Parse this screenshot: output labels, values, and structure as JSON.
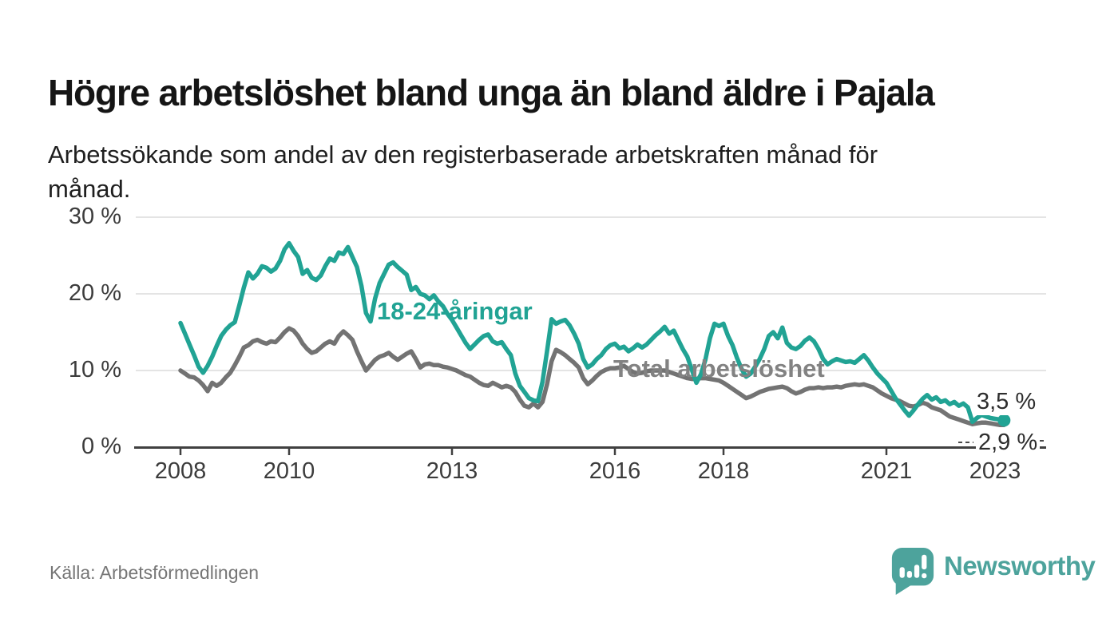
{
  "title": "Högre arbetslöshet bland unga än bland äldre i Pajala",
  "subtitle": "Arbetssökande som andel av den registerbaserade arbetskraften månad för månad.",
  "source": "Källa: Arbetsförmedlingen",
  "branding": {
    "name": "Newsworthy",
    "icon": "speech-bubble-with-bar-chart",
    "color": "#4da39c"
  },
  "chart_data": {
    "type": "line",
    "title": "Högre arbetslöshet bland unga än bland äldre i Pajala",
    "xlabel": "",
    "ylabel": "",
    "unit": "%",
    "x_start": "2008-01",
    "frequency": "monthly",
    "x_tick_years": [
      2008,
      2010,
      2013,
      2016,
      2018,
      2021,
      2023
    ],
    "x_tick_labels": [
      "2008",
      "2010",
      "2013",
      "2016",
      "2018",
      "2021",
      "2023"
    ],
    "y_ticks": [
      0,
      10,
      20,
      30
    ],
    "y_tick_labels": [
      "0 %",
      "10 %",
      "20 %",
      "30 %"
    ],
    "ylim": [
      0,
      31
    ],
    "grid": "horizontal",
    "colors": {
      "grid": "#dcdcdc",
      "axis": "#404040",
      "tick_text": "#3c3c3c"
    },
    "series": [
      {
        "name": "18-24-åringar",
        "color": "#21a394",
        "end_label": "3,5 %",
        "end_value": 3.5,
        "end_marker": "dot",
        "values": [
          16.2,
          14.8,
          13.4,
          12.0,
          10.5,
          9.7,
          10.6,
          11.8,
          13.2,
          14.5,
          15.3,
          15.9,
          16.3,
          18.5,
          20.8,
          22.8,
          22.0,
          22.6,
          23.6,
          23.4,
          22.9,
          23.3,
          24.3,
          25.8,
          26.6,
          25.6,
          24.8,
          22.6,
          23.1,
          22.1,
          21.8,
          22.4,
          23.6,
          24.6,
          24.3,
          25.4,
          25.2,
          26.1,
          24.8,
          23.5,
          21.0,
          17.5,
          16.4,
          19.4,
          21.4,
          22.6,
          23.8,
          24.1,
          23.5,
          23.0,
          22.5,
          20.5,
          20.9,
          20.0,
          19.8,
          19.3,
          19.8,
          19.0,
          18.4,
          17.4,
          16.6,
          15.6,
          14.6,
          13.6,
          12.8,
          13.4,
          14.0,
          14.5,
          14.7,
          13.8,
          13.5,
          13.7,
          12.8,
          12.0,
          9.6,
          8.0,
          7.2,
          6.4,
          6.1,
          6.0,
          8.5,
          12.5,
          16.7,
          16.1,
          16.4,
          16.6,
          15.9,
          14.8,
          13.5,
          11.5,
          10.4,
          10.8,
          11.5,
          12.0,
          12.8,
          13.3,
          13.5,
          12.9,
          13.1,
          12.5,
          12.9,
          13.4,
          13.0,
          13.4,
          14.0,
          14.6,
          15.1,
          15.7,
          14.8,
          15.2,
          14.0,
          12.8,
          11.8,
          10.1,
          8.4,
          9.5,
          11.4,
          14.2,
          16.1,
          15.8,
          16.1,
          14.5,
          13.3,
          11.6,
          10.2,
          9.2,
          9.6,
          10.5,
          11.5,
          12.8,
          14.5,
          15.0,
          14.2,
          15.6,
          13.6,
          13.0,
          12.8,
          13.2,
          13.9,
          14.3,
          13.8,
          12.8,
          11.5,
          10.8,
          11.2,
          11.5,
          11.3,
          11.1,
          11.2,
          11.0,
          11.5,
          12.0,
          11.3,
          10.4,
          9.6,
          9.0,
          8.4,
          7.4,
          6.4,
          5.6,
          4.8,
          4.1,
          4.8,
          5.6,
          6.3,
          6.8,
          6.2,
          6.5,
          5.9,
          6.1,
          5.6,
          5.9,
          5.4,
          5.7,
          5.2,
          3.3,
          3.8,
          4.2,
          4.0,
          3.8,
          3.7,
          3.6,
          3.5
        ]
      },
      {
        "name": "Total arbetslöshet",
        "color": "#737373",
        "end_label": "2,9 %",
        "end_value": 2.9,
        "end_marker": "dashed-leader",
        "values": [
          10.0,
          9.6,
          9.2,
          9.1,
          8.7,
          8.1,
          7.3,
          8.4,
          8.0,
          8.4,
          9.1,
          9.7,
          10.7,
          11.8,
          13.0,
          13.3,
          13.8,
          14.0,
          13.7,
          13.5,
          13.8,
          13.7,
          14.3,
          15.0,
          15.5,
          15.2,
          14.5,
          13.5,
          12.8,
          12.3,
          12.5,
          13.0,
          13.5,
          13.8,
          13.5,
          14.5,
          15.1,
          14.6,
          14.0,
          12.5,
          11.2,
          10.0,
          10.7,
          11.4,
          11.8,
          12.0,
          12.3,
          11.8,
          11.4,
          11.8,
          12.2,
          12.5,
          11.5,
          10.4,
          10.8,
          10.9,
          10.7,
          10.7,
          10.5,
          10.4,
          10.2,
          10.0,
          9.7,
          9.4,
          9.2,
          8.8,
          8.4,
          8.1,
          8.0,
          8.4,
          8.1,
          7.8,
          8.0,
          7.8,
          7.2,
          6.2,
          5.4,
          5.2,
          5.7,
          5.2,
          5.9,
          8.2,
          11.2,
          12.7,
          12.4,
          12.0,
          11.5,
          11.0,
          10.4,
          9.0,
          8.2,
          8.7,
          9.3,
          9.8,
          10.1,
          10.3,
          10.3,
          10.4,
          10.6,
          10.2,
          9.8,
          9.6,
          9.7,
          9.9,
          10.0,
          10.0,
          10.0,
          10.0,
          9.8,
          9.6,
          9.4,
          9.2,
          9.0,
          8.9,
          8.9,
          9.0,
          9.0,
          8.9,
          8.8,
          8.7,
          8.4,
          8.0,
          7.6,
          7.2,
          6.8,
          6.4,
          6.6,
          6.9,
          7.2,
          7.4,
          7.6,
          7.7,
          7.8,
          7.9,
          7.7,
          7.3,
          7.0,
          7.2,
          7.5,
          7.7,
          7.7,
          7.8,
          7.7,
          7.8,
          7.8,
          7.9,
          7.8,
          8.0,
          8.1,
          8.2,
          8.1,
          8.2,
          8.0,
          7.8,
          7.4,
          7.0,
          6.7,
          6.4,
          6.2,
          6.0,
          5.7,
          5.4,
          5.3,
          5.5,
          5.8,
          5.6,
          5.2,
          5.0,
          4.8,
          4.4,
          4.0,
          3.8,
          3.6,
          3.4,
          3.2,
          3.0,
          3.1,
          3.2,
          3.2,
          3.1,
          3.0,
          2.9,
          2.9
        ]
      }
    ]
  }
}
